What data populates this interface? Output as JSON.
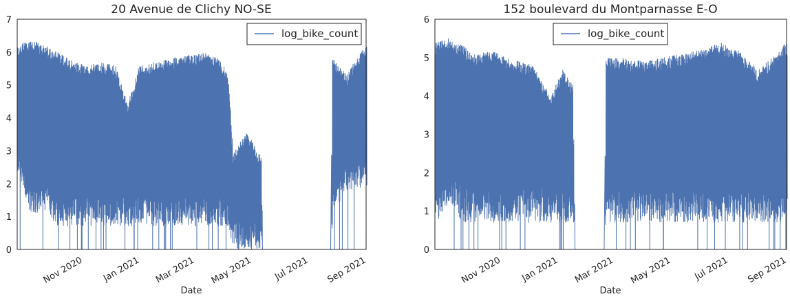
{
  "chart_data": [
    {
      "type": "line",
      "title": "20 Avenue de Clichy NO-SE",
      "xlabel": "Date",
      "ylabel": "",
      "xlim": [
        "2020-09-01",
        "2021-09-10"
      ],
      "ylim": [
        0,
        7
      ],
      "yticks": [
        0,
        1,
        2,
        3,
        4,
        5,
        6,
        7
      ],
      "xticks": [
        {
          "date": "2020-11-01",
          "label": "Nov 2020"
        },
        {
          "date": "2021-01-01",
          "label": "Jan 2021"
        },
        {
          "date": "2021-03-01",
          "label": "Mar 2021"
        },
        {
          "date": "2021-05-01",
          "label": "May 2021"
        },
        {
          "date": "2021-07-01",
          "label": "Jul 2021"
        },
        {
          "date": "2021-09-01",
          "label": "Sep 2021"
        }
      ],
      "grid": false,
      "legend_position": "top-right",
      "series": [
        {
          "name": "log_bike_count",
          "color": "#4c72b0",
          "envelope": [
            {
              "date": "2020-09-01",
              "max": 6.2,
              "min": 2.2
            },
            {
              "date": "2020-09-15",
              "max": 6.4,
              "min": 1.1
            },
            {
              "date": "2020-10-01",
              "max": 6.2,
              "min": 1.1
            },
            {
              "date": "2020-10-15",
              "max": 6.0,
              "min": 0.7
            },
            {
              "date": "2020-11-01",
              "max": 5.7,
              "min": 0.7
            },
            {
              "date": "2020-11-15",
              "max": 5.6,
              "min": 0.7
            },
            {
              "date": "2020-12-01",
              "max": 5.7,
              "min": 0.7
            },
            {
              "date": "2020-12-15",
              "max": 5.6,
              "min": 0.7
            },
            {
              "date": "2020-12-28",
              "max": 4.4,
              "min": 0.7
            },
            {
              "date": "2021-01-10",
              "max": 5.6,
              "min": 0.7
            },
            {
              "date": "2021-01-25",
              "max": 5.7,
              "min": 0.7
            },
            {
              "date": "2021-02-10",
              "max": 5.8,
              "min": 0.7
            },
            {
              "date": "2021-03-01",
              "max": 5.9,
              "min": 0.7
            },
            {
              "date": "2021-03-20",
              "max": 6.0,
              "min": 0.7
            },
            {
              "date": "2021-04-05",
              "max": 5.8,
              "min": 0.7
            },
            {
              "date": "2021-04-15",
              "max": 5.3,
              "min": 0.7
            },
            {
              "date": "2021-04-20",
              "max": 2.9,
              "min": 0.0
            },
            {
              "date": "2021-05-05",
              "max": 3.6,
              "min": 0.0
            },
            {
              "date": "2021-05-20",
              "max": 2.8,
              "min": 0.0
            },
            {
              "date": "2021-05-22",
              "max": 0.0,
              "min": 0.0
            },
            {
              "date": "2021-08-03",
              "max": 0.0,
              "min": 0.0
            },
            {
              "date": "2021-08-05",
              "max": 5.8,
              "min": 1.1
            },
            {
              "date": "2021-08-20",
              "max": 5.3,
              "min": 1.8
            },
            {
              "date": "2021-09-01",
              "max": 5.9,
              "min": 1.8
            },
            {
              "date": "2021-09-10",
              "max": 6.2,
              "min": 1.8
            }
          ]
        }
      ]
    },
    {
      "type": "line",
      "title": "152 boulevard du Montparnasse E-O",
      "xlabel": "Date",
      "ylabel": "",
      "xlim": [
        "2020-09-01",
        "2021-09-10"
      ],
      "ylim": [
        0,
        6
      ],
      "yticks": [
        0,
        1,
        2,
        3,
        4,
        5,
        6
      ],
      "xticks": [
        {
          "date": "2020-11-01",
          "label": "Nov 2020"
        },
        {
          "date": "2021-01-01",
          "label": "Jan 2021"
        },
        {
          "date": "2021-03-01",
          "label": "Mar 2021"
        },
        {
          "date": "2021-05-01",
          "label": "May 2021"
        },
        {
          "date": "2021-07-01",
          "label": "Jul 2021"
        },
        {
          "date": "2021-09-01",
          "label": "Sep 2021"
        }
      ],
      "grid": false,
      "legend_position": "top-center",
      "series": [
        {
          "name": "log_bike_count",
          "color": "#4c72b0",
          "envelope": [
            {
              "date": "2020-09-01",
              "max": 5.4,
              "min": 0.7
            },
            {
              "date": "2020-09-15",
              "max": 5.5,
              "min": 1.1
            },
            {
              "date": "2020-10-01",
              "max": 5.3,
              "min": 0.7
            },
            {
              "date": "2020-10-15",
              "max": 5.1,
              "min": 0.7
            },
            {
              "date": "2020-11-01",
              "max": 5.2,
              "min": 0.7
            },
            {
              "date": "2020-11-15",
              "max": 5.0,
              "min": 0.7
            },
            {
              "date": "2020-12-01",
              "max": 4.9,
              "min": 0.7
            },
            {
              "date": "2020-12-15",
              "max": 4.8,
              "min": 0.7
            },
            {
              "date": "2021-01-01",
              "max": 4.0,
              "min": 0.7
            },
            {
              "date": "2021-01-15",
              "max": 4.7,
              "min": 0.7
            },
            {
              "date": "2021-01-25",
              "max": 4.3,
              "min": 0.7
            },
            {
              "date": "2021-01-28",
              "max": 0.0,
              "min": 0.0
            },
            {
              "date": "2021-02-28",
              "max": 0.0,
              "min": 0.0
            },
            {
              "date": "2021-03-02",
              "max": 5.0,
              "min": 0.7
            },
            {
              "date": "2021-03-20",
              "max": 5.0,
              "min": 0.7
            },
            {
              "date": "2021-04-10",
              "max": 4.9,
              "min": 0.7
            },
            {
              "date": "2021-05-01",
              "max": 5.0,
              "min": 0.7
            },
            {
              "date": "2021-05-20",
              "max": 5.1,
              "min": 0.7
            },
            {
              "date": "2021-06-10",
              "max": 5.2,
              "min": 0.7
            },
            {
              "date": "2021-07-01",
              "max": 5.4,
              "min": 0.7
            },
            {
              "date": "2021-07-20",
              "max": 5.2,
              "min": 0.7
            },
            {
              "date": "2021-08-10",
              "max": 4.7,
              "min": 0.7
            },
            {
              "date": "2021-08-25",
              "max": 5.0,
              "min": 0.7
            },
            {
              "date": "2021-09-10",
              "max": 5.4,
              "min": 0.7
            }
          ]
        }
      ]
    }
  ]
}
